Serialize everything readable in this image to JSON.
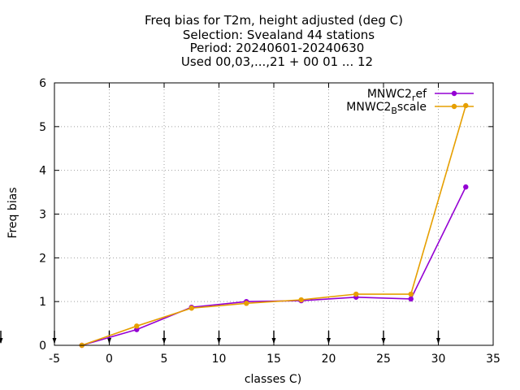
{
  "chart_data": {
    "type": "line",
    "title_lines": [
      "Freq bias  for T2m, height adjusted (deg C)",
      "Selection: Svealand     44 stations",
      "Period: 20240601-20240630",
      "Used 00,03,...,21 + 00 01 ... 12"
    ],
    "xlabel": "classes C)",
    "ylabel": "Freq bias",
    "xlim": [
      -5,
      35
    ],
    "ylim": [
      0,
      6
    ],
    "xticks": [
      -5,
      0,
      5,
      10,
      15,
      20,
      25,
      30,
      35
    ],
    "yticks": [
      0,
      1,
      2,
      3,
      4,
      5,
      6
    ],
    "grid": true,
    "legend_position": "top-right",
    "class_marks": [
      -5,
      0,
      5,
      10,
      15,
      20,
      25,
      30
    ],
    "series": [
      {
        "name": "MNWC2_ref",
        "legend_main": "MNWC2",
        "legend_sub": "r",
        "legend_rest": "ef",
        "color": "#9400d3",
        "x": [
          -2.5,
          2.5,
          7.5,
          12.5,
          17.5,
          22.5,
          27.5,
          32.5
        ],
        "y": [
          0.0,
          0.36,
          0.87,
          1.0,
          1.02,
          1.1,
          1.06,
          3.62
        ]
      },
      {
        "name": "MNWC2_Bscale",
        "legend_main": "MNWC2",
        "legend_sub": "B",
        "legend_rest": "scale",
        "color": "#e69f00",
        "x": [
          -2.5,
          2.5,
          7.5,
          12.5,
          17.5,
          22.5,
          27.5,
          32.5
        ],
        "y": [
          0.0,
          0.44,
          0.85,
          0.96,
          1.04,
          1.17,
          1.17,
          5.48
        ]
      }
    ]
  }
}
